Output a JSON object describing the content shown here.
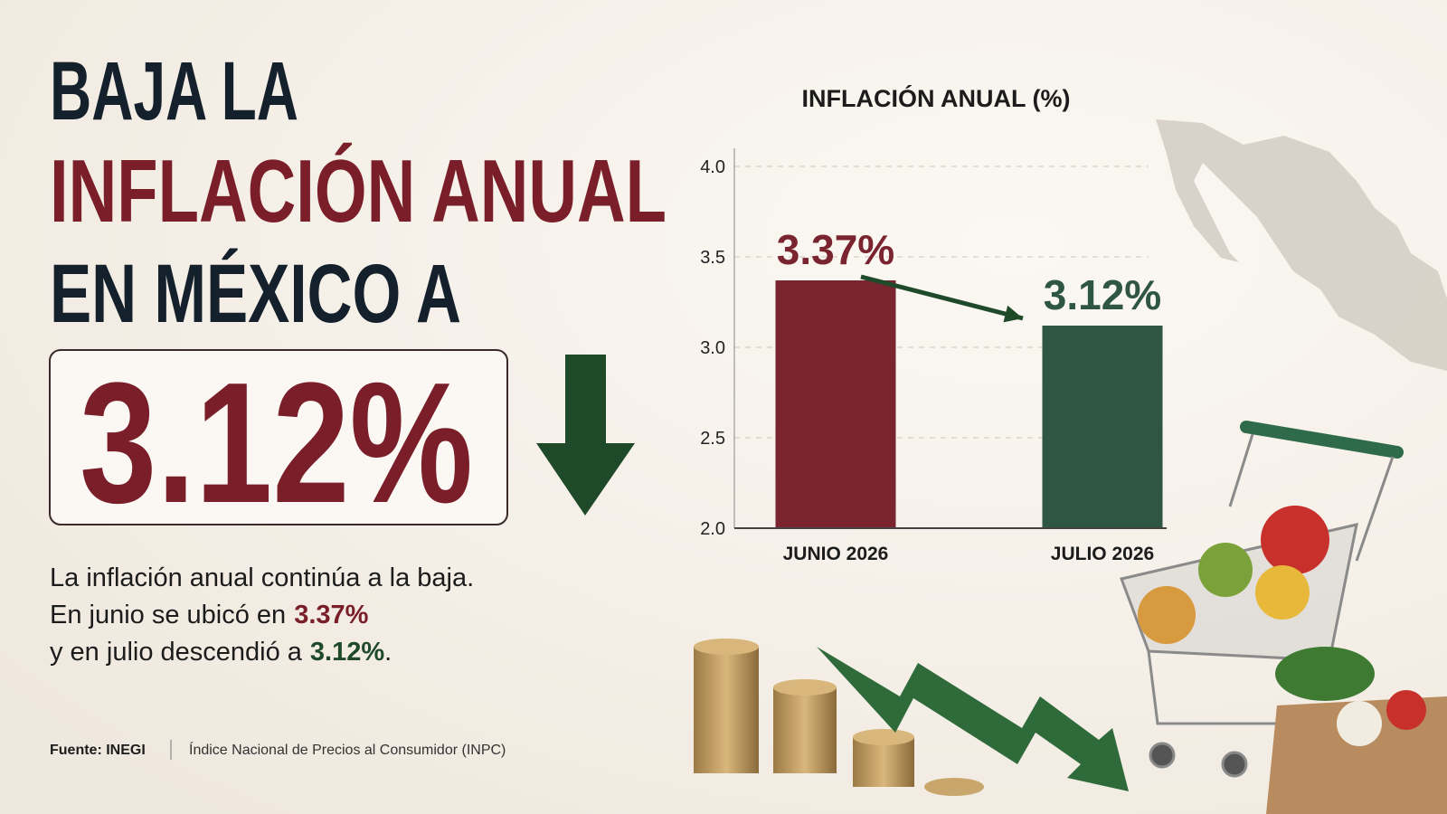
{
  "header": {
    "line1": "BAJA LA",
    "line2": "INFLACIÓN ANUAL",
    "line3": "EN MÉXICO A",
    "highlight": "3.12%"
  },
  "summary": {
    "line1": "La inflación anual continúa a la baja.",
    "line2": "En junio se ubicó en",
    "line2_value": "3.37%",
    "line3": "y en julio descendió a",
    "line3_value": "3.12%",
    "line3_end": "."
  },
  "footer": {
    "source": "Fuente: INEGI",
    "description": "Índice Nacional de Precios al Consumidor (INPC)"
  },
  "chart_data": {
    "type": "bar",
    "title": "INFLACIÓN ANUAL (%)",
    "categories": [
      "JUNIO 2026",
      "JULIO 2026"
    ],
    "values": [
      3.37,
      3.12
    ],
    "value_labels": [
      "3.37%",
      "3.12%"
    ],
    "colors": [
      "#7a2430",
      "#2e5640"
    ],
    "ylim": [
      2,
      4
    ],
    "yticks": [
      {
        "value": 2,
        "label": "2.0"
      },
      {
        "value": 2.5,
        "label": "2.5"
      },
      {
        "value": 3,
        "label": "3.0"
      },
      {
        "value": 3.5,
        "label": "3.5"
      },
      {
        "value": 4,
        "label": "4.0"
      }
    ],
    "grid": true
  }
}
